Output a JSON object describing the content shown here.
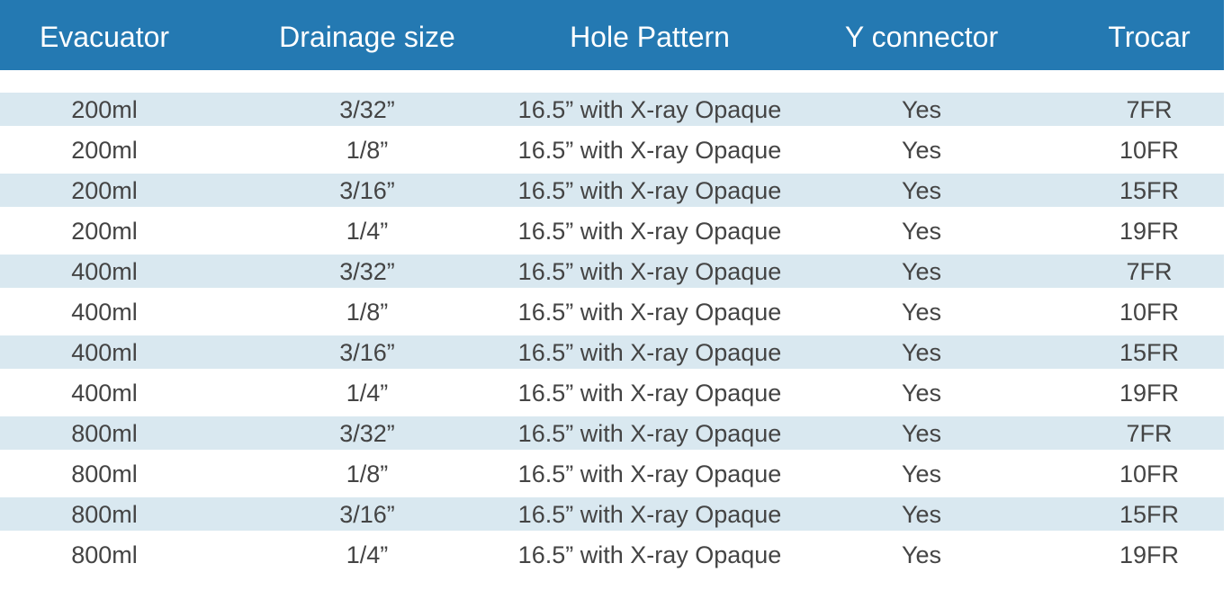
{
  "table": {
    "headers": [
      "Evacuator",
      "Drainage size",
      "Hole Pattern",
      "Y connector",
      "Trocar"
    ],
    "rows": [
      [
        "200ml",
        "3/32”",
        "16.5” with X-ray Opaque",
        "Yes",
        "7FR"
      ],
      [
        "200ml",
        "1/8”",
        "16.5” with X-ray Opaque",
        "Yes",
        "10FR"
      ],
      [
        "200ml",
        "3/16”",
        "16.5” with X-ray Opaque",
        "Yes",
        "15FR"
      ],
      [
        "200ml",
        "1/4”",
        "16.5” with X-ray Opaque",
        "Yes",
        "19FR"
      ],
      [
        "400ml",
        "3/32”",
        "16.5” with X-ray Opaque",
        "Yes",
        "7FR"
      ],
      [
        "400ml",
        "1/8”",
        "16.5” with X-ray Opaque",
        "Yes",
        "10FR"
      ],
      [
        "400ml",
        "3/16”",
        "16.5” with X-ray Opaque",
        "Yes",
        "15FR"
      ],
      [
        "400ml",
        "1/4”",
        "16.5” with X-ray Opaque",
        "Yes",
        "19FR"
      ],
      [
        "800ml",
        "3/32”",
        "16.5” with X-ray Opaque",
        "Yes",
        "7FR"
      ],
      [
        "800ml",
        "1/8”",
        "16.5” with X-ray Opaque",
        "Yes",
        "10FR"
      ],
      [
        "800ml",
        "3/16”",
        "16.5” with X-ray Opaque",
        "Yes",
        "15FR"
      ],
      [
        "800ml",
        "1/4”",
        "16.5” with X-ray Opaque",
        "Yes",
        "19FR"
      ]
    ]
  },
  "colors": {
    "header_bg": "#2479b2",
    "stripe": "#d9e8f0",
    "text": "#444444"
  }
}
